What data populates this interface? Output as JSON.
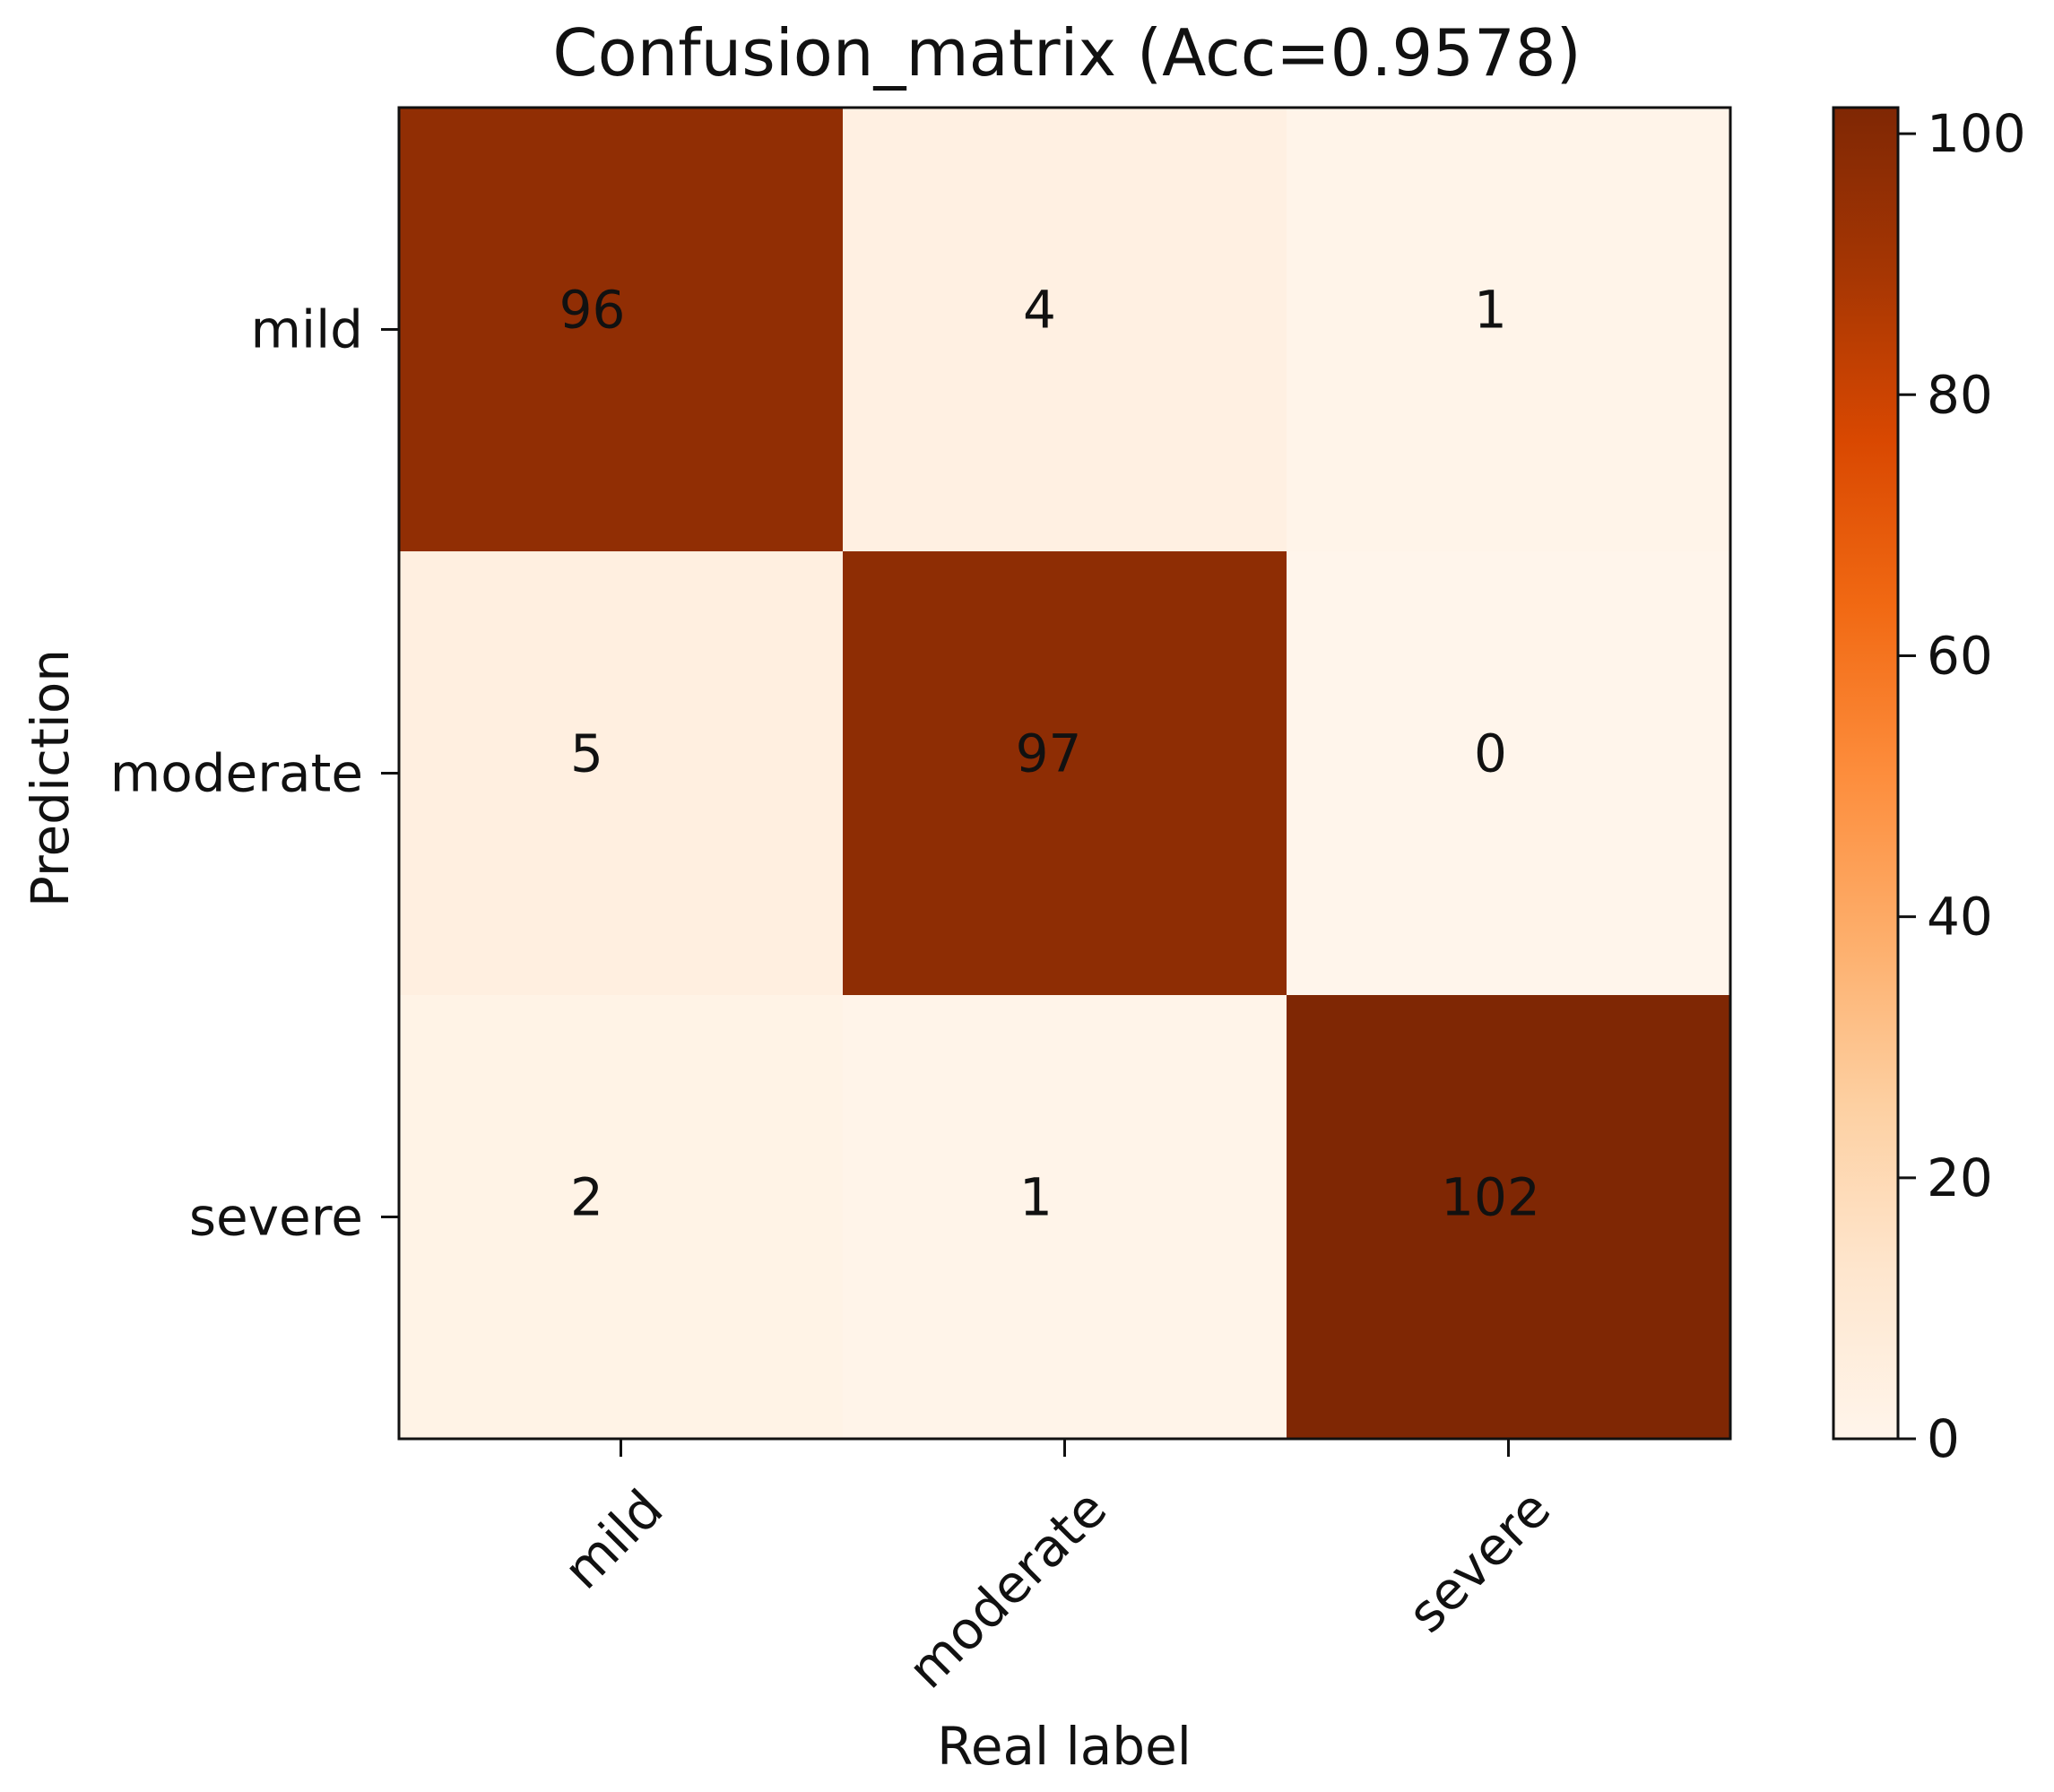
{
  "chart_data": {
    "type": "heatmap",
    "title": "Confusion_matrix (Acc=0.9578)",
    "xlabel": "Real label",
    "ylabel": "Prediction",
    "x_categories": [
      "mild",
      "moderate",
      "severe"
    ],
    "y_categories": [
      "mild",
      "moderate",
      "severe"
    ],
    "values": [
      [
        96,
        4,
        1
      ],
      [
        5,
        97,
        0
      ],
      [
        2,
        1,
        102
      ]
    ],
    "colorbar": {
      "range": [
        0,
        102
      ],
      "ticks": [
        0,
        20,
        40,
        60,
        80,
        100
      ]
    },
    "colormap_stops": [
      "#fff5eb",
      "#fee6ce",
      "#fdd0a2",
      "#fdae6b",
      "#fd8d3c",
      "#f16913",
      "#d94801",
      "#a63603",
      "#7f2704"
    ],
    "legend": "none",
    "grid": false
  }
}
